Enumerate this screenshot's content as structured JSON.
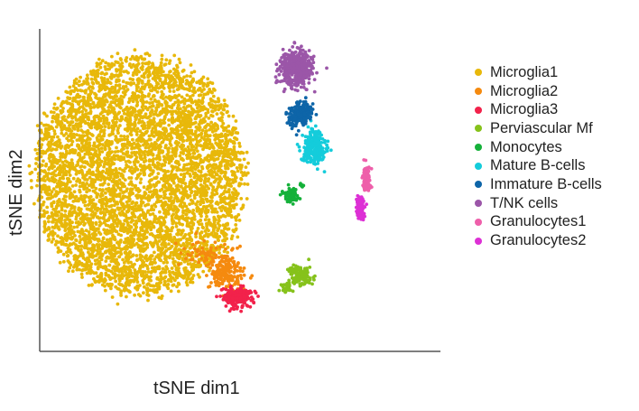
{
  "chart_data": {
    "type": "scatter",
    "title": "",
    "xlabel": "tSNE dim1",
    "ylabel": "tSNE dim2",
    "xlim": [
      -50,
      50
    ],
    "ylim": [
      -45,
      45
    ],
    "grid": false,
    "show_ticks": false,
    "legend_position": "right",
    "series": [
      {
        "name": "Microglia1",
        "color": "#E8B80A",
        "clusters": [
          {
            "cx": -25,
            "cy": 4,
            "rx": 26,
            "ry": 33,
            "n": 5200,
            "shape": "disk"
          }
        ]
      },
      {
        "name": "Microglia2",
        "color": "#F58A0F",
        "clusters": [
          {
            "cx": -3.5,
            "cy": -23,
            "rx": 4,
            "ry": 4,
            "n": 170,
            "shape": "gauss"
          },
          {
            "cx": -8,
            "cy": -18,
            "rx": 6,
            "ry": 4,
            "n": 70,
            "shape": "gauss"
          }
        ]
      },
      {
        "name": "Microglia3",
        "color": "#F2224B",
        "clusters": [
          {
            "cx": -1,
            "cy": -30,
            "rx": 3.5,
            "ry": 2.6,
            "n": 200,
            "shape": "gauss"
          }
        ]
      },
      {
        "name": "Perviascular Mf",
        "color": "#86C21B",
        "clusters": [
          {
            "cx": 15,
            "cy": -24,
            "rx": 2.6,
            "ry": 2.4,
            "n": 150,
            "shape": "gauss"
          },
          {
            "cx": 11.5,
            "cy": -27.5,
            "rx": 1.2,
            "ry": 1.2,
            "n": 30,
            "shape": "gauss"
          }
        ]
      },
      {
        "name": "Monocytes",
        "color": "#15B13A",
        "clusters": [
          {
            "cx": 12.5,
            "cy": -1.5,
            "rx": 1.7,
            "ry": 1.7,
            "n": 80,
            "shape": "gauss"
          },
          {
            "cx": 15.3,
            "cy": 1.2,
            "rx": 0.6,
            "ry": 0.6,
            "n": 10,
            "shape": "gauss"
          }
        ]
      },
      {
        "name": "Mature B-cells",
        "color": "#14CCDB",
        "clusters": [
          {
            "cx": 18.5,
            "cy": 12,
            "rx": 2.6,
            "ry": 4.5,
            "n": 230,
            "shape": "gauss"
          }
        ]
      },
      {
        "name": "Immature B-cells",
        "color": "#0E65A8",
        "clusters": [
          {
            "cx": 15.5,
            "cy": 21.5,
            "rx": 2.3,
            "ry": 2.4,
            "n": 170,
            "shape": "gauss"
          },
          {
            "cx": 13,
            "cy": 19,
            "rx": 2,
            "ry": 2.5,
            "n": 40,
            "shape": "gauss"
          }
        ]
      },
      {
        "name": "T/NK cells",
        "color": "#9B56A8",
        "clusters": [
          {
            "cx": 14,
            "cy": 34,
            "rx": 3.8,
            "ry": 4.3,
            "n": 450,
            "shape": "gauss"
          }
        ]
      },
      {
        "name": "Granulocytes1",
        "color": "#EE5FAA",
        "clusters": [
          {
            "cx": 31.5,
            "cy": 3.5,
            "rx": 0.9,
            "ry": 3,
            "n": 110,
            "shape": "gauss"
          }
        ]
      },
      {
        "name": "Granulocytes2",
        "color": "#DD30D5",
        "clusters": [
          {
            "cx": 30,
            "cy": -5,
            "rx": 0.9,
            "ry": 2.8,
            "n": 110,
            "shape": "gauss"
          }
        ]
      }
    ]
  }
}
